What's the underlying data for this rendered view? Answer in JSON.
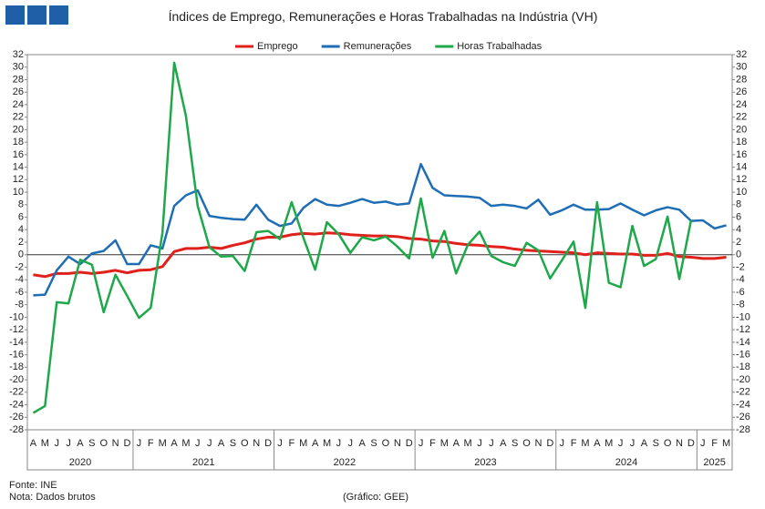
{
  "chart_data": {
    "type": "line",
    "title": "Índices de Emprego, Remunerações e Horas Trabalhadas na Indústria (VH)",
    "categories": [
      "A",
      "M",
      "J",
      "J",
      "A",
      "S",
      "O",
      "N",
      "D",
      "J",
      "F",
      "M",
      "A",
      "M",
      "J",
      "J",
      "A",
      "S",
      "O",
      "N",
      "D",
      "J",
      "F",
      "M",
      "A",
      "M",
      "J",
      "J",
      "A",
      "S",
      "O",
      "N",
      "D",
      "J",
      "F",
      "M",
      "A",
      "M",
      "J",
      "J",
      "A",
      "S",
      "O",
      "N",
      "D",
      "J",
      "F",
      "M",
      "A",
      "M",
      "J",
      "J",
      "A",
      "S",
      "O",
      "N",
      "D",
      "J",
      "F",
      "M"
    ],
    "years": [
      "2020",
      "2021",
      "2022",
      "2023",
      "2024",
      "2025"
    ],
    "series": [
      {
        "name": "Emprego",
        "color": "#e0201b",
        "values": [
          -3.2,
          -3.5,
          -3.0,
          -3.0,
          -2.8,
          -3.0,
          -2.8,
          -2.5,
          -2.9,
          -2.5,
          -2.4,
          -1.9,
          0.5,
          1.0,
          1.0,
          1.2,
          1.0,
          1.5,
          1.9,
          2.5,
          2.8,
          2.8,
          3.2,
          3.4,
          3.3,
          3.5,
          3.4,
          3.2,
          3.1,
          3.0,
          3.0,
          2.9,
          2.6,
          2.5,
          2.2,
          2.1,
          1.8,
          1.6,
          1.5,
          1.3,
          1.2,
          0.9,
          0.7,
          0.6,
          0.5,
          0.4,
          0.3,
          0.0,
          0.3,
          0.2,
          0.1,
          0.1,
          -0.1,
          -0.1,
          0.2,
          -0.3,
          -0.4,
          -0.6,
          -0.6,
          -0.4
        ]
      },
      {
        "name": "Remunerações",
        "color": "#1f6eb5",
        "values": [
          -6.5,
          -6.4,
          -2.5,
          -0.3,
          -1.5,
          0.2,
          0.6,
          2.3,
          -1.5,
          -1.5,
          1.5,
          1.0,
          7.8,
          9.5,
          10.3,
          6.2,
          5.9,
          5.7,
          5.6,
          8.0,
          5.6,
          4.6,
          5.0,
          7.5,
          8.9,
          8.0,
          7.8,
          8.3,
          8.9,
          8.3,
          8.5,
          8.0,
          8.2,
          14.5,
          10.7,
          9.5,
          9.4,
          9.3,
          9.1,
          7.8,
          8.0,
          7.8,
          7.4,
          8.8,
          6.4,
          7.1,
          8.0,
          7.2,
          7.2,
          7.3,
          8.2,
          7.2,
          6.3,
          7.1,
          7.6,
          7.2,
          5.4,
          5.5,
          4.2,
          4.7
        ]
      },
      {
        "name": "Horas Trabalhadas",
        "color": "#1fa84a",
        "values": [
          -25.3,
          -24.2,
          -7.6,
          -7.8,
          -0.8,
          -1.6,
          -9.2,
          -3.2,
          -6.6,
          -10.1,
          -8.5,
          3.5,
          30.7,
          22.2,
          7.8,
          1.2,
          -0.3,
          -0.2,
          -2.6,
          3.6,
          3.8,
          2.5,
          8.4,
          2.7,
          -2.4,
          5.2,
          3.3,
          0.3,
          2.8,
          2.3,
          2.9,
          1.3,
          -0.6,
          9.0,
          -0.5,
          3.8,
          -3.0,
          1.6,
          3.7,
          -0.2,
          -1.2,
          -1.8,
          1.9,
          0.7,
          -3.8,
          -0.9,
          2.1,
          -8.5,
          8.4,
          -4.5,
          -5.2,
          4.6,
          -1.8,
          -0.7,
          6.1,
          -3.9,
          5.5,
          null,
          null,
          null
        ]
      }
    ],
    "ylim": [
      -28,
      32
    ],
    "yticks": [
      -28,
      -26,
      -24,
      -22,
      -20,
      -18,
      -16,
      -14,
      -12,
      -10,
      -8,
      -6,
      -4,
      -2,
      0,
      2,
      4,
      6,
      8,
      10,
      12,
      14,
      16,
      18,
      20,
      22,
      24,
      26,
      28,
      30,
      32
    ],
    "y2lim": [
      -28,
      32
    ],
    "y2ticks": [
      -28,
      -26,
      -24,
      -22,
      -20,
      -18,
      -16,
      -14,
      -12,
      -10,
      -8,
      -6,
      -4,
      -2,
      0,
      2,
      4,
      6,
      8,
      10,
      12,
      14,
      16,
      18,
      20,
      22,
      24,
      26,
      28,
      30,
      32
    ],
    "source": "Fonte: INE",
    "note": "Nota: Dados brutos",
    "credit": "(Gráfico: GEE)"
  }
}
